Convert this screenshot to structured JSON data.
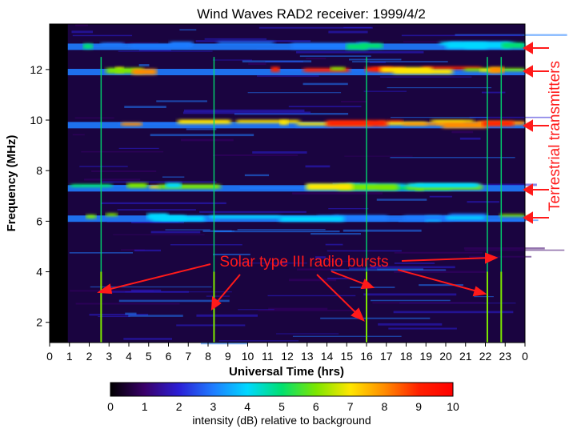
{
  "chart_data": {
    "type": "heatmap",
    "title": "Wind Waves RAD2 receiver: 1999/4/2",
    "xlabel": "Universal Time (hrs)",
    "ylabel": "Frequency (MHz)",
    "x_ticks": [
      "0",
      "1",
      "2",
      "3",
      "4",
      "5",
      "6",
      "7",
      "8",
      "9",
      "10",
      "11",
      "12",
      "13",
      "14",
      "15",
      "16",
      "17",
      "18",
      "19",
      "20",
      "21",
      "22",
      "23",
      "0"
    ],
    "xlim": [
      0,
      24
    ],
    "y_ticks": [
      2,
      4,
      6,
      8,
      10,
      12
    ],
    "ylim": [
      1.2,
      13.8
    ],
    "colorbar": {
      "label": "intensity (dB) relative to background",
      "ticks": [
        0,
        1,
        2,
        3,
        4,
        5,
        6,
        7,
        8,
        9,
        10
      ],
      "range": [
        0,
        10
      ],
      "colors": [
        "#000000",
        "#3a006a",
        "#2b1fd6",
        "#1f7cff",
        "#00d8ff",
        "#00e070",
        "#7ce600",
        "#ffe600",
        "#ff8c00",
        "#ff2000",
        "#ff0000"
      ]
    },
    "data_gap": {
      "x_start": 0.0,
      "x_end": 1.0
    },
    "transmitter_bands": [
      {
        "freq_mhz": 12.9,
        "intensity_db": 3.5
      },
      {
        "freq_mhz": 11.9,
        "intensity_db": 8.0
      },
      {
        "freq_mhz": 9.8,
        "intensity_db": 8.5
      },
      {
        "freq_mhz": 7.3,
        "intensity_db": 5.5
      },
      {
        "freq_mhz": 6.1,
        "intensity_db": 5.0
      }
    ],
    "type_iii_bursts_ut": [
      2.6,
      8.3,
      16.0,
      22.1,
      22.8
    ],
    "annotations": [
      {
        "text": "Solar type III radio bursts",
        "color": "#ff1a1a"
      },
      {
        "text": "Terrestrial transmitters",
        "color": "#ff1a1a"
      }
    ]
  }
}
